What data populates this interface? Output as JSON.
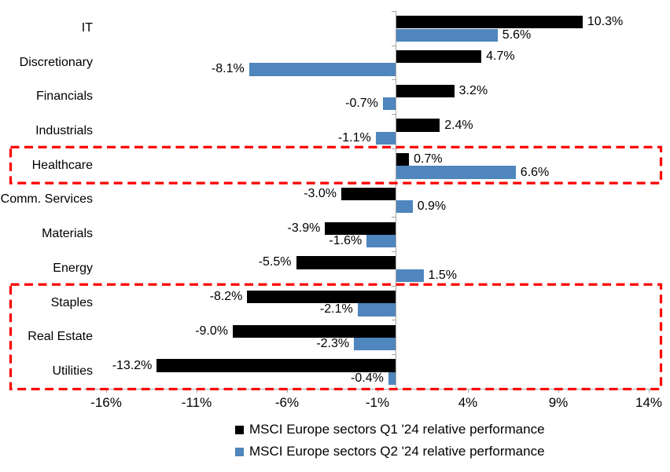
{
  "chart_data": {
    "type": "bar",
    "orientation": "horizontal",
    "title": "",
    "xlabel": "",
    "ylabel": "",
    "grid": false,
    "legend_position": "bottom",
    "background_color": "#FFFFFF",
    "axis_color": "#A6A6A6",
    "text_color": "#000000",
    "categories": [
      "IT",
      "Discretionary",
      "Financials",
      "Industrials",
      "Healthcare",
      "Comm. Services",
      "Materials",
      "Energy",
      "Staples",
      "Real Estate",
      "Utilities"
    ],
    "series": [
      {
        "id": "q1",
        "name": "MSCI Europe sectors Q1 '24 relative performance",
        "color": "#000000",
        "values": [
          10.3,
          4.7,
          3.2,
          2.4,
          0.7,
          -3.0,
          -3.9,
          -5.5,
          -8.2,
          -9.0,
          -13.2
        ]
      },
      {
        "id": "q2",
        "name": "MSCI Europe sectors Q2 '24 relative performance",
        "color": "#4E86BD",
        "values": [
          5.6,
          -8.1,
          -0.7,
          -1.1,
          6.6,
          0.9,
          -1.6,
          1.5,
          -2.1,
          -2.3,
          -0.4
        ]
      }
    ],
    "value_labels": [
      [
        "10.3%",
        "4.7%",
        "3.2%",
        "2.4%",
        "0.7%",
        "-3.0%",
        "-3.9%",
        "-5.5%",
        "-8.2%",
        "-9.0%",
        "-13.2%"
      ],
      [
        "5.6%",
        "-8.1%",
        "-0.7%",
        "-1.1%",
        "6.6%",
        "0.9%",
        "-1.6%",
        "1.5%",
        "-2.1%",
        "-2.3%",
        "-0.4%"
      ]
    ],
    "x_ticks": [
      "-16%",
      "-11%",
      "-6%",
      "-1%",
      "4%",
      "9%",
      "14%"
    ],
    "x_tick_values": [
      -16,
      -11,
      -6,
      -1,
      4,
      9,
      14
    ],
    "xlim": [
      -17.2,
      14.35
    ],
    "highlight_boxes": [
      {
        "rows": [
          "Healthcare"
        ],
        "start_row": 4,
        "end_row": 4,
        "color": "#FF0000"
      },
      {
        "rows": [
          "Staples",
          "Real Estate",
          "Utilities"
        ],
        "start_row": 8,
        "end_row": 10,
        "color": "#FF0000"
      }
    ]
  }
}
